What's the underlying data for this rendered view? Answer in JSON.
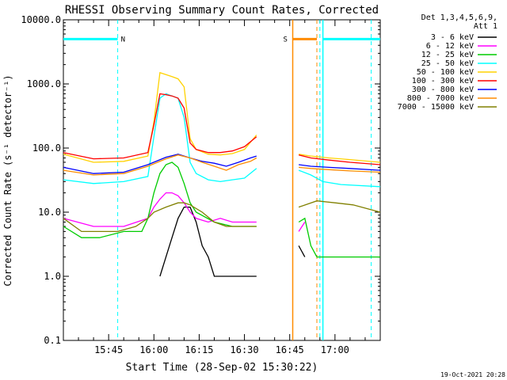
{
  "chart_data": {
    "type": "line",
    "title": "RHESSI Observing Summary Count Rates, Corrected",
    "xlabel": "Start Time (28-Sep-02 15:30:22)",
    "ylabel": "Corrected Count Rate (s⁻¹ detector⁻¹)",
    "y_scale": "log",
    "ylim": [
      0.1,
      10000
    ],
    "xlim_minutes": [
      0,
      105
    ],
    "x_ticks": [
      {
        "m": 15,
        "label": "15:45"
      },
      {
        "m": 30,
        "label": "16:00"
      },
      {
        "m": 45,
        "label": "16:15"
      },
      {
        "m": 60,
        "label": "16:30"
      },
      {
        "m": 75,
        "label": "16:45"
      },
      {
        "m": 90,
        "label": "17:00"
      }
    ],
    "y_ticks": [
      {
        "v": 0.1,
        "label": "0.1"
      },
      {
        "v": 1,
        "label": "1.0"
      },
      {
        "v": 10,
        "label": "10.0"
      },
      {
        "v": 100,
        "label": "100.0"
      },
      {
        "v": 1000,
        "label": "1000.0"
      },
      {
        "v": 10000,
        "label": "10000.0"
      }
    ],
    "legend_header": [
      "Det 1,3,4,5,6,9,",
      "Att 1"
    ],
    "legend_placement": "right",
    "series": [
      {
        "name": "3 - 6 keV",
        "color": "#000000",
        "points": [
          [
            32,
            1
          ],
          [
            34,
            2
          ],
          [
            36,
            4
          ],
          [
            38,
            8
          ],
          [
            40,
            12
          ],
          [
            42,
            12
          ],
          [
            44,
            7
          ],
          [
            46,
            3
          ],
          [
            48,
            2
          ],
          [
            50,
            1
          ],
          [
            55,
            1
          ],
          [
            60,
            1
          ],
          [
            64,
            1
          ],
          [
            65,
            null
          ],
          [
            78,
            null
          ],
          [
            78,
            3
          ],
          [
            80,
            2
          ],
          [
            82,
            null
          ]
        ]
      },
      {
        "name": "6 - 12 keV",
        "color": "#ff00ff",
        "points": [
          [
            0,
            8
          ],
          [
            10,
            6
          ],
          [
            20,
            6
          ],
          [
            28,
            8
          ],
          [
            30,
            12
          ],
          [
            32,
            16
          ],
          [
            34,
            20
          ],
          [
            36,
            20
          ],
          [
            38,
            18
          ],
          [
            40,
            14
          ],
          [
            42,
            10
          ],
          [
            44,
            8
          ],
          [
            48,
            7
          ],
          [
            52,
            8
          ],
          [
            56,
            7
          ],
          [
            62,
            7
          ],
          [
            64,
            7
          ],
          [
            65,
            null
          ],
          [
            78,
            null
          ],
          [
            78,
            5
          ],
          [
            80,
            7
          ],
          [
            82,
            null
          ]
        ]
      },
      {
        "name": "12 - 25 keV",
        "color": "#00cc00",
        "points": [
          [
            0,
            6
          ],
          [
            6,
            4
          ],
          [
            12,
            4
          ],
          [
            20,
            5
          ],
          [
            26,
            5
          ],
          [
            28,
            8
          ],
          [
            30,
            20
          ],
          [
            32,
            40
          ],
          [
            34,
            55
          ],
          [
            36,
            60
          ],
          [
            38,
            50
          ],
          [
            40,
            28
          ],
          [
            42,
            14
          ],
          [
            44,
            10
          ],
          [
            50,
            7
          ],
          [
            56,
            6
          ],
          [
            60,
            6
          ],
          [
            64,
            6
          ],
          [
            65,
            null
          ],
          [
            78,
            null
          ],
          [
            78,
            7
          ],
          [
            80,
            8
          ],
          [
            82,
            3
          ],
          [
            84,
            2
          ],
          [
            90,
            2
          ],
          [
            105,
            2
          ]
        ]
      },
      {
        "name": "25 - 50 keV",
        "color": "#00ffff",
        "points": [
          [
            0,
            32
          ],
          [
            10,
            28
          ],
          [
            20,
            30
          ],
          [
            28,
            36
          ],
          [
            30,
            150
          ],
          [
            32,
            600
          ],
          [
            34,
            700
          ],
          [
            36,
            650
          ],
          [
            38,
            600
          ],
          [
            40,
            300
          ],
          [
            42,
            60
          ],
          [
            44,
            40
          ],
          [
            48,
            32
          ],
          [
            52,
            30
          ],
          [
            56,
            32
          ],
          [
            60,
            34
          ],
          [
            64,
            48
          ],
          [
            65,
            null
          ],
          [
            78,
            null
          ],
          [
            78,
            45
          ],
          [
            82,
            38
          ],
          [
            86,
            30
          ],
          [
            92,
            27
          ],
          [
            105,
            25
          ]
        ]
      },
      {
        "name": "50 - 100 keV",
        "color": "#ffd200",
        "points": [
          [
            0,
            80
          ],
          [
            10,
            60
          ],
          [
            20,
            62
          ],
          [
            28,
            75
          ],
          [
            30,
            260
          ],
          [
            32,
            1500
          ],
          [
            34,
            1400
          ],
          [
            36,
            1300
          ],
          [
            38,
            1200
          ],
          [
            40,
            900
          ],
          [
            42,
            140
          ],
          [
            44,
            95
          ],
          [
            48,
            80
          ],
          [
            52,
            78
          ],
          [
            56,
            82
          ],
          [
            60,
            95
          ],
          [
            64,
            160
          ],
          [
            65,
            null
          ],
          [
            78,
            null
          ],
          [
            78,
            80
          ],
          [
            82,
            75
          ],
          [
            88,
            70
          ],
          [
            95,
            66
          ],
          [
            105,
            60
          ]
        ]
      },
      {
        "name": "100 - 300 keV",
        "color": "#ff0000",
        "points": [
          [
            0,
            85
          ],
          [
            10,
            68
          ],
          [
            20,
            70
          ],
          [
            28,
            85
          ],
          [
            30,
            230
          ],
          [
            32,
            700
          ],
          [
            34,
            680
          ],
          [
            36,
            650
          ],
          [
            38,
            600
          ],
          [
            40,
            420
          ],
          [
            42,
            120
          ],
          [
            44,
            95
          ],
          [
            48,
            85
          ],
          [
            52,
            85
          ],
          [
            56,
            90
          ],
          [
            60,
            105
          ],
          [
            64,
            150
          ],
          [
            65,
            null
          ],
          [
            78,
            null
          ],
          [
            78,
            78
          ],
          [
            82,
            70
          ],
          [
            88,
            65
          ],
          [
            95,
            60
          ],
          [
            105,
            55
          ]
        ]
      },
      {
        "name": "300 - 800 keV",
        "color": "#0000ff",
        "points": [
          [
            0,
            50
          ],
          [
            10,
            40
          ],
          [
            20,
            42
          ],
          [
            28,
            55
          ],
          [
            34,
            72
          ],
          [
            38,
            80
          ],
          [
            42,
            70
          ],
          [
            46,
            62
          ],
          [
            50,
            58
          ],
          [
            54,
            52
          ],
          [
            58,
            60
          ],
          [
            62,
            70
          ],
          [
            64,
            75
          ],
          [
            65,
            null
          ],
          [
            78,
            null
          ],
          [
            78,
            55
          ],
          [
            82,
            52
          ],
          [
            88,
            50
          ],
          [
            95,
            48
          ],
          [
            105,
            45
          ]
        ]
      },
      {
        "name": "800 - 7000 keV",
        "color": "#ff8c00",
        "points": [
          [
            0,
            45
          ],
          [
            10,
            38
          ],
          [
            20,
            40
          ],
          [
            28,
            52
          ],
          [
            34,
            68
          ],
          [
            38,
            78
          ],
          [
            42,
            70
          ],
          [
            46,
            60
          ],
          [
            50,
            52
          ],
          [
            54,
            45
          ],
          [
            58,
            55
          ],
          [
            62,
            62
          ],
          [
            64,
            70
          ],
          [
            65,
            null
          ],
          [
            78,
            null
          ],
          [
            78,
            50
          ],
          [
            82,
            48
          ],
          [
            88,
            46
          ],
          [
            95,
            44
          ],
          [
            105,
            42
          ]
        ]
      },
      {
        "name": "7000 - 15000 keV",
        "color": "#808000",
        "points": [
          [
            0,
            8
          ],
          [
            6,
            5
          ],
          [
            12,
            5
          ],
          [
            18,
            5
          ],
          [
            24,
            6
          ],
          [
            28,
            8
          ],
          [
            30,
            10
          ],
          [
            34,
            12
          ],
          [
            38,
            14
          ],
          [
            40,
            14
          ],
          [
            42,
            13
          ],
          [
            46,
            10
          ],
          [
            50,
            7
          ],
          [
            54,
            6
          ],
          [
            58,
            6
          ],
          [
            62,
            6
          ],
          [
            64,
            6
          ],
          [
            65,
            null
          ],
          [
            78,
            null
          ],
          [
            78,
            12
          ],
          [
            84,
            15
          ],
          [
            90,
            14
          ],
          [
            96,
            13
          ],
          [
            105,
            10
          ]
        ]
      }
    ],
    "event_bars": [
      {
        "label": "N",
        "color": "#00ffff",
        "segments": [
          [
            0,
            18
          ],
          [
            86,
            105
          ]
        ],
        "value": 5000
      },
      {
        "label": "S",
        "color": "#ff8c00",
        "segments": [
          [
            76,
            84
          ]
        ],
        "value": 5000
      }
    ],
    "dashed_lines": [
      {
        "m": 18,
        "color": "#00ffff"
      },
      {
        "m": 85,
        "color": "#00ffff"
      },
      {
        "m": 102,
        "color": "#00ffff"
      },
      {
        "m": 84,
        "color": "#ff8c00"
      }
    ],
    "solid_lines": [
      {
        "m": 76,
        "color": "#ff8c00"
      },
      {
        "m": 86,
        "color": "#00ffff"
      }
    ],
    "footer": "19-Oct-2021 20:28"
  }
}
